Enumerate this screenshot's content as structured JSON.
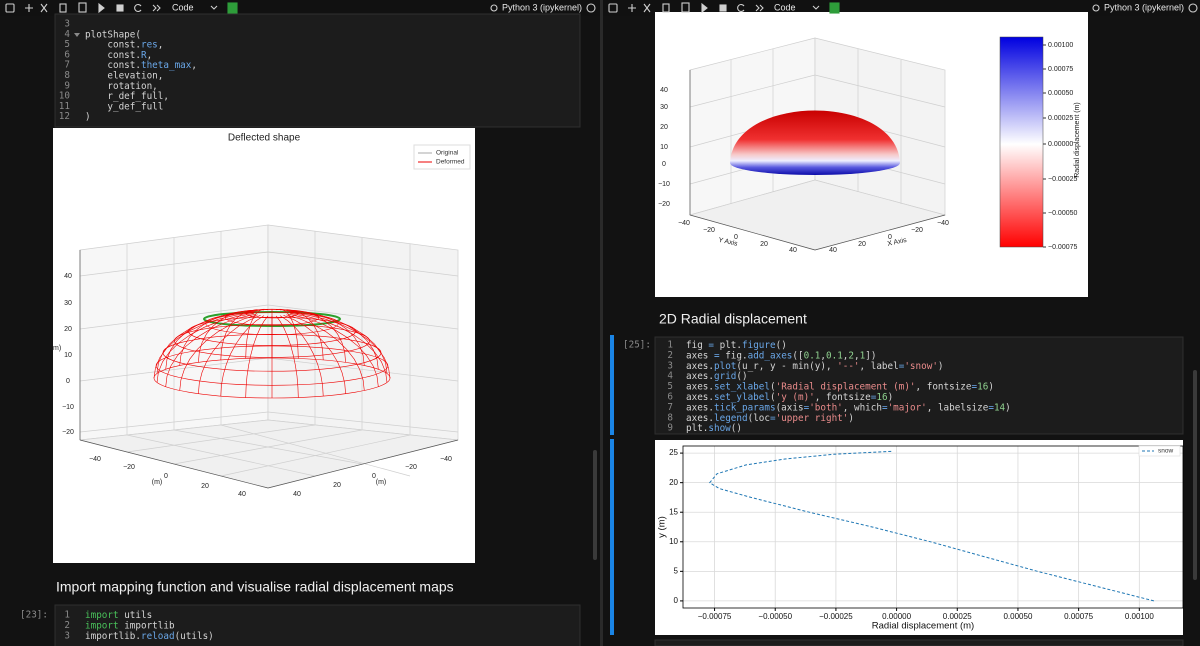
{
  "left": {
    "toolbar": {
      "cell_type": "Code",
      "kernel": "Python 3 (ipykernel)"
    },
    "code_cell": {
      "lines": [
        {
          "n": 3
        },
        {
          "n": 4,
          "code": "plotShape("
        },
        {
          "n": 5,
          "code": "    const.res,"
        },
        {
          "n": 6,
          "code": "    const.R,"
        },
        {
          "n": 7,
          "code": "    const.theta_max,"
        },
        {
          "n": 8,
          "code": "    elevation,"
        },
        {
          "n": 9,
          "code": "    rotation,"
        },
        {
          "n": 10,
          "code": "    r_def_full,"
        },
        {
          "n": 11,
          "code": "    y_def_full"
        },
        {
          "n": 12,
          "code": ")"
        }
      ]
    },
    "figure": {
      "title": "Deflected shape",
      "legend": [
        "Original",
        "Deformed"
      ],
      "z_label": "m)",
      "z_ticks": [
        40,
        30,
        20,
        10,
        0,
        "−10",
        "−20"
      ],
      "axis_a_ticks": [
        "−40",
        "−20",
        0,
        20,
        40
      ],
      "axis_a_label": "(m)",
      "axis_b_ticks": [
        "−40",
        "−20",
        0,
        20,
        40
      ],
      "axis_b_label": "(m)"
    },
    "heading": "Import mapping function and visualise radial displacement maps",
    "import_cell": {
      "prompt": "[23]:",
      "lines": [
        {
          "n": 1,
          "code": "import utils"
        },
        {
          "n": 2,
          "code": "import importlib"
        },
        {
          "n": 3,
          "code": "importlib.reload(utils)"
        }
      ]
    }
  },
  "right": {
    "toolbar": {
      "cell_type": "Code",
      "kernel": "Python 3 (ipykernel)"
    },
    "figure": {
      "z_ticks": [
        40,
        30,
        20,
        10,
        0,
        "−10",
        "−20"
      ],
      "y_axis_ticks": [
        "−40",
        "−20",
        0,
        20,
        40
      ],
      "y_axis_label": "Y Axis",
      "x_axis_ticks": [
        "−40",
        "−20",
        0,
        20,
        40
      ],
      "x_axis_label": "X Axis",
      "colorbar_ticks": [
        "0.00100",
        "0.00075",
        "0.00050",
        "0.00025",
        "0.00000",
        "−0.00025",
        "−0.00050",
        "−0.00075"
      ],
      "colorbar_label": "Radial displacement (m)"
    },
    "heading": "2D Radial displacement",
    "plot_cell": {
      "prompt": "[25]:",
      "lines": [
        {
          "n": 1,
          "code": "fig = plt.figure()"
        },
        {
          "n": 2,
          "code": "axes = fig.add_axes([0.1,0.1,2,1])"
        },
        {
          "n": 3,
          "code": "axes.plot(u_r, y - min(y), '--', label='snow')"
        },
        {
          "n": 4,
          "code": "axes.grid()"
        },
        {
          "n": 5,
          "code": "axes.set_xlabel('Radial displacement (m)', fontsize=16)"
        },
        {
          "n": 6,
          "code": "axes.set_ylabel('y (m)', fontsize=16)"
        },
        {
          "n": 7,
          "code": "axes.tick_params(axis='both', which='major', labelsize=14)"
        },
        {
          "n": 8,
          "code": "axes.legend(loc='upper right')"
        },
        {
          "n": 9,
          "code": "plt.show()"
        }
      ]
    },
    "output_chart": {
      "type": "line",
      "xlabel": "Radial displacement (m)",
      "ylabel": "y (m)",
      "xlim": [
        -0.00088,
        0.00118
      ],
      "ylim": [
        -1.2,
        26.2
      ],
      "xticks": [
        {
          "value": -0.00075,
          "label": "−0.00075"
        },
        {
          "value": -0.0005,
          "label": "−0.00050"
        },
        {
          "value": -0.00025,
          "label": "−0.00025"
        },
        {
          "value": 0,
          "label": "0.00000"
        },
        {
          "value": 0.00025,
          "label": "0.00025"
        },
        {
          "value": 0.0005,
          "label": "0.00050"
        },
        {
          "value": 0.00075,
          "label": "0.00075"
        },
        {
          "value": 0.001,
          "label": "0.00100"
        }
      ],
      "yticks": [
        0,
        5,
        10,
        15,
        20,
        25
      ],
      "grid": true,
      "legend": "upper right",
      "series": [
        {
          "name": "snow",
          "color": "#1f77b4",
          "x": [
            0.00106,
            0.00082,
            0.00058,
            0.00036,
            0.00014,
            -0.0001,
            -0.00036,
            -0.0006,
            -0.00073,
            -0.00077,
            -0.00074,
            -0.00062,
            -0.00046,
            -0.00026,
            -2e-05
          ],
          "values": [
            0,
            2.5,
            5,
            7.5,
            10,
            12.5,
            15,
            17.5,
            19,
            20,
            21.5,
            23,
            24,
            24.8,
            25.3
          ]
        }
      ]
    }
  }
}
